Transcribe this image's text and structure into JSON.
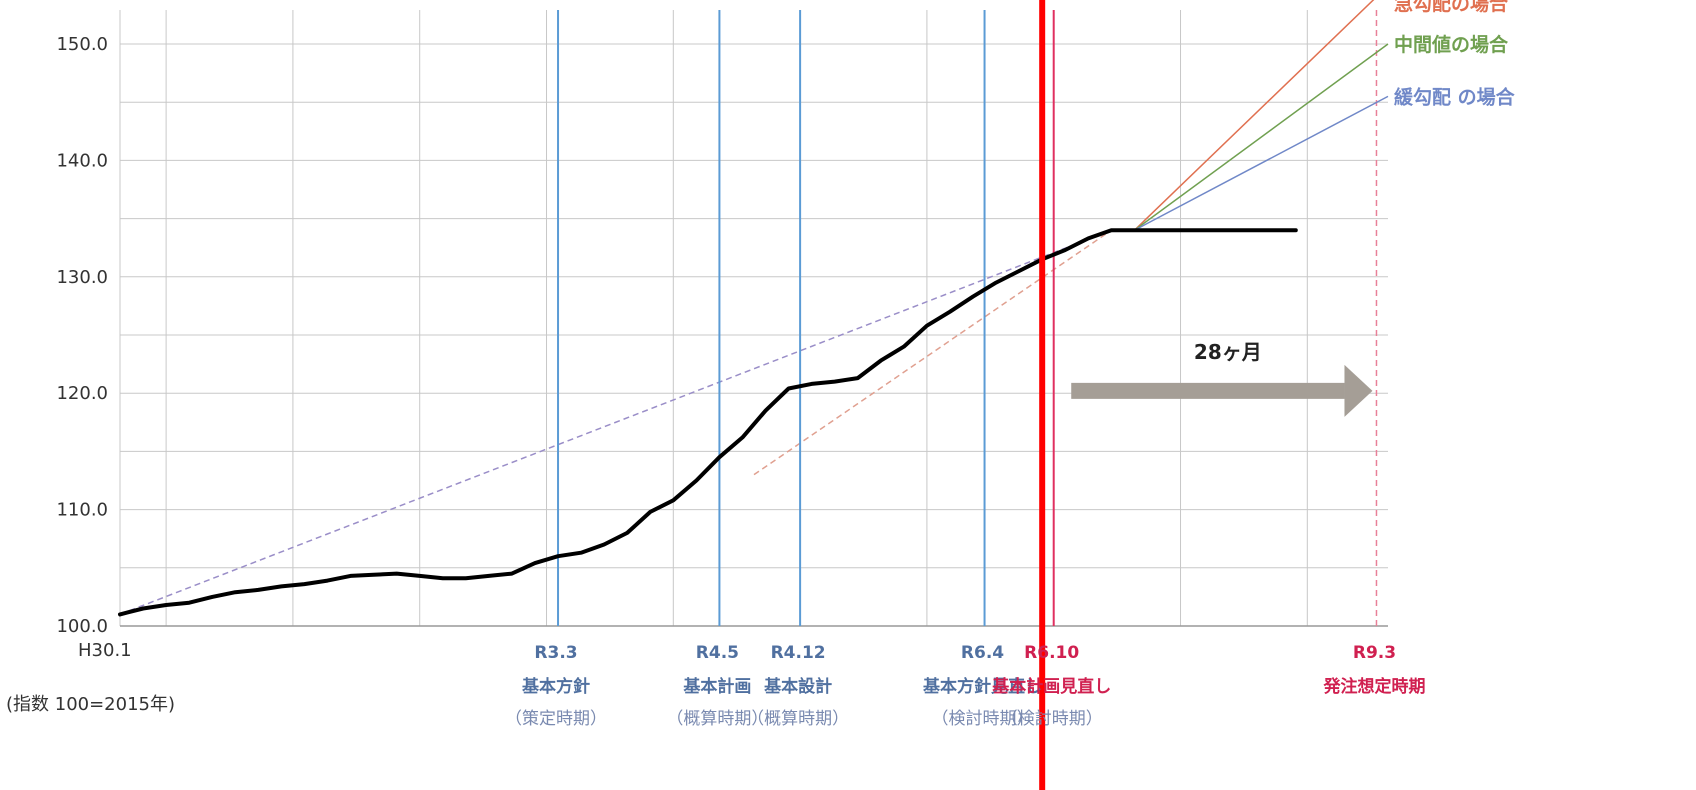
{
  "chart_data": {
    "type": "line",
    "title": "",
    "xlabel": "",
    "ylabel": "",
    "x_unit": "months since H30.1",
    "xlim": [
      0,
      110
    ],
    "ylim": [
      100,
      150
    ],
    "yticks": [
      "100.0",
      "110.0",
      "120.0",
      "130.0",
      "140.0",
      "150.0"
    ],
    "x_start_label": "H30.1",
    "index_note": "(指数 100=2015年)",
    "grid": true,
    "series": [
      {
        "name": "",
        "color": "#000000",
        "x": [
          0,
          2,
          4,
          6,
          8,
          10,
          12,
          14,
          16,
          18,
          20,
          22,
          24,
          26,
          28,
          30,
          32,
          34,
          36,
          38,
          40,
          42,
          44,
          46,
          48,
          50,
          52,
          54,
          56,
          58,
          60,
          62,
          64,
          66,
          68,
          70,
          72,
          74,
          76,
          78,
          80,
          82,
          84,
          86,
          88,
          90,
          92,
          94,
          96,
          98,
          100,
          102
        ],
        "y": [
          101.0,
          101.5,
          101.8,
          102.0,
          102.5,
          102.9,
          103.1,
          103.4,
          103.6,
          103.9,
          104.3,
          104.4,
          104.5,
          104.3,
          104.1,
          104.1,
          104.3,
          104.5,
          105.4,
          106.0,
          106.3,
          107.0,
          108.0,
          109.8,
          110.8,
          112.5,
          114.5,
          116.2,
          118.5,
          120.4,
          120.8,
          121.0,
          121.3,
          122.8,
          124.0,
          125.8,
          127.0,
          128.3,
          129.5,
          130.5,
          131.5,
          132.3,
          133.3,
          134.0,
          134.0,
          134.0,
          134.0,
          134.0,
          134.0,
          134.0,
          134.0,
          134.0
        ]
      }
    ],
    "trend_lines": [
      {
        "color": "#9a8ec8",
        "x": [
          0,
          86
        ],
        "y": [
          101,
          134
        ]
      },
      {
        "color": "#e0a090",
        "x": [
          55,
          86
        ],
        "y": [
          113,
          134
        ]
      }
    ],
    "projections": [
      {
        "name": "急勾配の場合",
        "color": "#e07050",
        "x": [
          88,
          110
        ],
        "y": [
          134,
          155
        ]
      },
      {
        "name": "中間値の場合",
        "color": "#70a050",
        "x": [
          88,
          110
        ],
        "y": [
          134,
          150
        ]
      },
      {
        "name": "緩勾配 の場合",
        "color": "#7088c8",
        "x": [
          88,
          110
        ],
        "y": [
          134,
          145.5
        ]
      }
    ],
    "milestones": [
      {
        "x": 38,
        "label": "R3.3",
        "sub": "基本方針",
        "sub2": "（策定時期）",
        "color": "#5b9bd5",
        "label_color": "#5070a0"
      },
      {
        "x": 52,
        "label": "R4.5",
        "sub": "基本計画",
        "sub2": "（概算時期）",
        "color": "#5b9bd5",
        "label_color": "#5070a0"
      },
      {
        "x": 59,
        "label": "R4.12",
        "sub": "基本設計",
        "sub2": "（概算時期）",
        "color": "#5b9bd5",
        "label_color": "#5070a0"
      },
      {
        "x": 75,
        "label": "R6.4",
        "sub": "基本方針見直し",
        "sub2": "（検討時期）",
        "color": "#5b9bd5",
        "label_color": "#5070a0"
      },
      {
        "x": 81,
        "label": "R6.10",
        "sub": "基本計画見直し",
        "sub2": "（検討時期）",
        "color": "#e03060",
        "label_color": "#d02050"
      },
      {
        "x": 109,
        "label": "R9.3",
        "sub": "発注想定時期",
        "sub2": "",
        "color": "#e88098",
        "label_color": "#d02050",
        "dashed": true
      }
    ],
    "period_arrow": {
      "from": 82,
      "to": 109,
      "y": 120.2,
      "label": "28ヶ月",
      "color": "#a59e96"
    },
    "current_marker": {
      "x": 80,
      "color": "#ff0000"
    }
  }
}
